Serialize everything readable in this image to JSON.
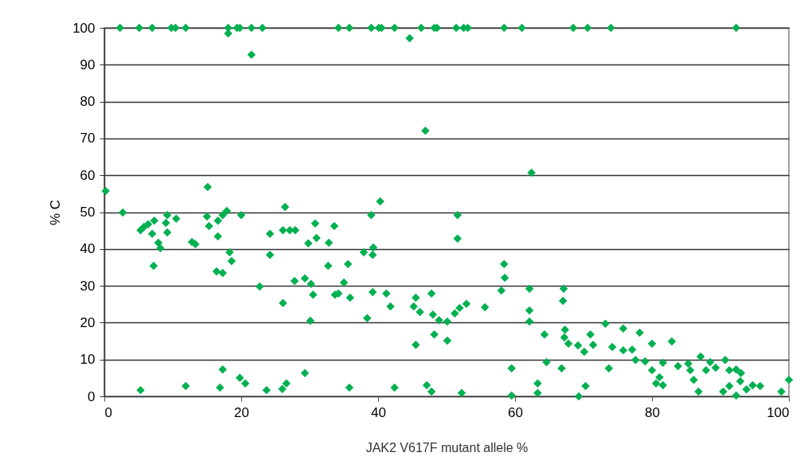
{
  "chart_data": {
    "type": "scatter",
    "xlabel": "JAK2 V617F mutant allele %",
    "ylabel": "% C",
    "xlim": [
      0,
      100
    ],
    "ylim": [
      0,
      100
    ],
    "xticks": [
      0,
      20,
      40,
      60,
      80,
      100
    ],
    "yticks": [
      0,
      10,
      20,
      30,
      40,
      50,
      60,
      70,
      80,
      90,
      100
    ],
    "grid": "y",
    "marker": "diamond",
    "legend": false,
    "series": [
      {
        "color": "#00b050",
        "x": [
          2.3,
          5.1,
          7.0,
          9.8,
          10.4,
          11.9,
          18.1,
          19.4,
          19.8,
          21.5,
          23.1,
          34.2,
          35.8,
          39.0,
          40.1,
          40.5,
          42.4,
          46.3,
          48.2,
          48.6,
          51.4,
          52.5,
          53.1,
          58.4,
          61.0,
          68.5,
          70.6,
          74.0,
          92.3,
          18.1,
          21.5,
          44.6,
          46.9,
          62.4,
          0.2,
          2.7,
          5.3,
          5.8,
          6.4,
          7.3,
          7.0,
          7.9,
          8.2,
          7.2,
          9.2,
          9.0,
          9.2,
          10.5,
          5.3,
          11.9,
          12.8,
          13.3,
          15.1,
          15.0,
          15.3,
          16.6,
          16.6,
          17.3,
          17.9,
          18.3,
          18.6,
          16.4,
          17.3,
          17.3,
          16.9,
          20.0,
          19.8,
          20.6,
          22.7,
          24.2,
          24.2,
          23.7,
          26.4,
          26.1,
          27.1,
          27.9,
          26.1,
          26.0,
          26.6,
          29.3,
          27.8,
          29.3,
          30.2,
          30.1,
          30.5,
          29.8,
          30.8,
          31.0,
          32.8,
          33.6,
          32.7,
          33.7,
          34.2,
          35.0,
          35.6,
          35.9,
          35.8,
          37.9,
          39.0,
          39.3,
          39.2,
          38.4,
          39.2,
          40.3,
          41.2,
          41.8,
          42.4,
          45.5,
          45.2,
          46.1,
          47.8,
          45.5,
          48.0,
          48.9,
          48.2,
          47.1,
          47.8,
          51.6,
          51.6,
          50.1,
          50.1,
          51.2,
          51.9,
          52.9,
          52.2,
          55.6,
          58.4,
          58.5,
          58.0,
          59.5,
          59.5,
          62.1,
          62.1,
          62.1,
          64.3,
          64.6,
          63.3,
          63.3,
          67.1,
          67.0,
          67.3,
          67.2,
          67.8,
          66.8,
          69.2,
          70.1,
          70.3,
          69.3,
          71.0,
          71.4,
          73.2,
          73.7,
          74.2,
          75.8,
          75.8,
          77.1,
          77.6,
          78.2,
          79.0,
          80.0,
          80.0,
          80.6,
          81.1,
          81.6,
          81.6,
          82.9,
          83.8,
          85.3,
          85.6,
          86.1,
          86.8,
          87.1,
          87.9,
          88.5,
          89.3,
          90.7,
          91.3,
          92.3,
          93.0,
          90.4,
          91.3,
          92.3,
          92.9,
          93.8,
          94.7,
          95.8,
          98.9,
          100
        ],
        "values": [
          100,
          100,
          100,
          100,
          100,
          100,
          100,
          100,
          100,
          100,
          100,
          100,
          100,
          100,
          100,
          100,
          100,
          100,
          100,
          100,
          100,
          100,
          100,
          100,
          100,
          100,
          100,
          100,
          100,
          98.5,
          92.7,
          97.2,
          72.1,
          60.7,
          55.7,
          49.9,
          45.1,
          46.0,
          46.7,
          47.7,
          44.1,
          41.7,
          40.2,
          35.4,
          49.2,
          47.1,
          44.5,
          48.2,
          1.7,
          2.8,
          41.9,
          41.3,
          56.8,
          48.8,
          46.2,
          47.7,
          43.4,
          49.2,
          50.3,
          39.1,
          36.7,
          33.9,
          33.5,
          7.3,
          2.4,
          49.2,
          5.0,
          3.5,
          29.8,
          44.1,
          38.4,
          1.7,
          51.4,
          45.1,
          45.1,
          45.1,
          25.3,
          2.0,
          3.5,
          6.3,
          31.3,
          32.0,
          30.5,
          20.5,
          27.6,
          41.5,
          46.9,
          43.0,
          41.7,
          46.2,
          35.4,
          27.6,
          27.9,
          30.9,
          35.9,
          26.8,
          2.4,
          39.1,
          49.2,
          40.4,
          38.4,
          21.2,
          28.3,
          52.9,
          27.9,
          24.4,
          2.4,
          26.8,
          24.4,
          22.9,
          27.9,
          14.0,
          22.2,
          20.7,
          16.8,
          3.0,
          1.3,
          49.2,
          42.8,
          20.3,
          15.1,
          22.5,
          24.0,
          25.1,
          0.9,
          24.2,
          35.9,
          32.2,
          28.7,
          7.6,
          0.2,
          29.2,
          23.3,
          20.3,
          16.8,
          9.3,
          3.5,
          0.9,
          29.2,
          25.9,
          18.1,
          16.0,
          14.3,
          7.6,
          13.8,
          12.1,
          2.8,
          0,
          16.8,
          14.0,
          19.7,
          7.6,
          13.4,
          18.4,
          12.5,
          12.7,
          9.9,
          17.3,
          9.5,
          14.3,
          7.1,
          3.5,
          5.2,
          9.1,
          3.0,
          14.9,
          8.2,
          8.9,
          7.1,
          4.5,
          1.3,
          10.8,
          7.1,
          9.3,
          7.8,
          9.9,
          7.1,
          7.3,
          6.3,
          1.3,
          2.8,
          0.2,
          4.1,
          1.9,
          3.0,
          2.8,
          1.3,
          4.5
        ]
      }
    ]
  }
}
